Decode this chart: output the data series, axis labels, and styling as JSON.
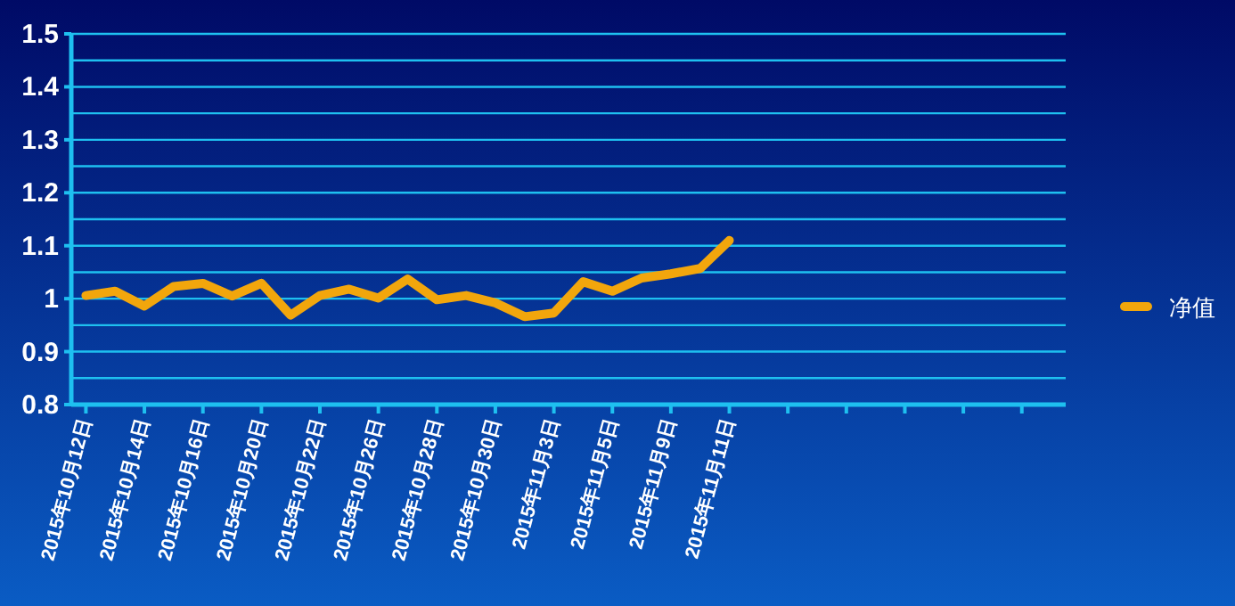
{
  "chart_data": {
    "type": "line",
    "categories": [
      "2015年10月12日",
      null,
      "2015年10月14日",
      null,
      "2015年10月16日",
      null,
      "2015年10月20日",
      null,
      "2015年10月22日",
      null,
      "2015年10月26日",
      null,
      "2015年10月28日",
      null,
      "2015年10月30日",
      null,
      "2015年11月3日",
      null,
      "2015年11月5日",
      null,
      "2015年11月9日",
      null,
      "2015年11月11日",
      null,
      null,
      null,
      null,
      null,
      null,
      null,
      null,
      null,
      null,
      null
    ],
    "series": [
      {
        "name": "净值",
        "color": "#f2a60c",
        "values": [
          1.006,
          1.014,
          0.986,
          1.023,
          1.029,
          1.005,
          1.029,
          0.969,
          1.006,
          1.018,
          1.001,
          1.037,
          0.998,
          1.006,
          0.992,
          0.966,
          0.973,
          1.032,
          1.014,
          1.039,
          1.047,
          1.057,
          1.11,
          null,
          null,
          null,
          null,
          null,
          null,
          null,
          null,
          null,
          null,
          null
        ]
      }
    ],
    "ylim": [
      0.8,
      1.5
    ],
    "yticks": [
      0.8,
      {
        "value": 0.85,
        "label": null
      },
      0.9,
      {
        "value": 0.95,
        "label": null
      },
      1,
      {
        "value": 1.05,
        "label": null
      },
      1.1,
      {
        "value": 1.15,
        "label": null
      },
      1.2,
      {
        "value": 1.25,
        "label": null
      },
      1.3,
      {
        "value": 1.35,
        "label": null
      },
      1.4,
      {
        "value": 1.45,
        "label": null
      },
      1.5
    ],
    "grid": "y",
    "legend": "right",
    "marker": "none",
    "line_style": "solid"
  }
}
